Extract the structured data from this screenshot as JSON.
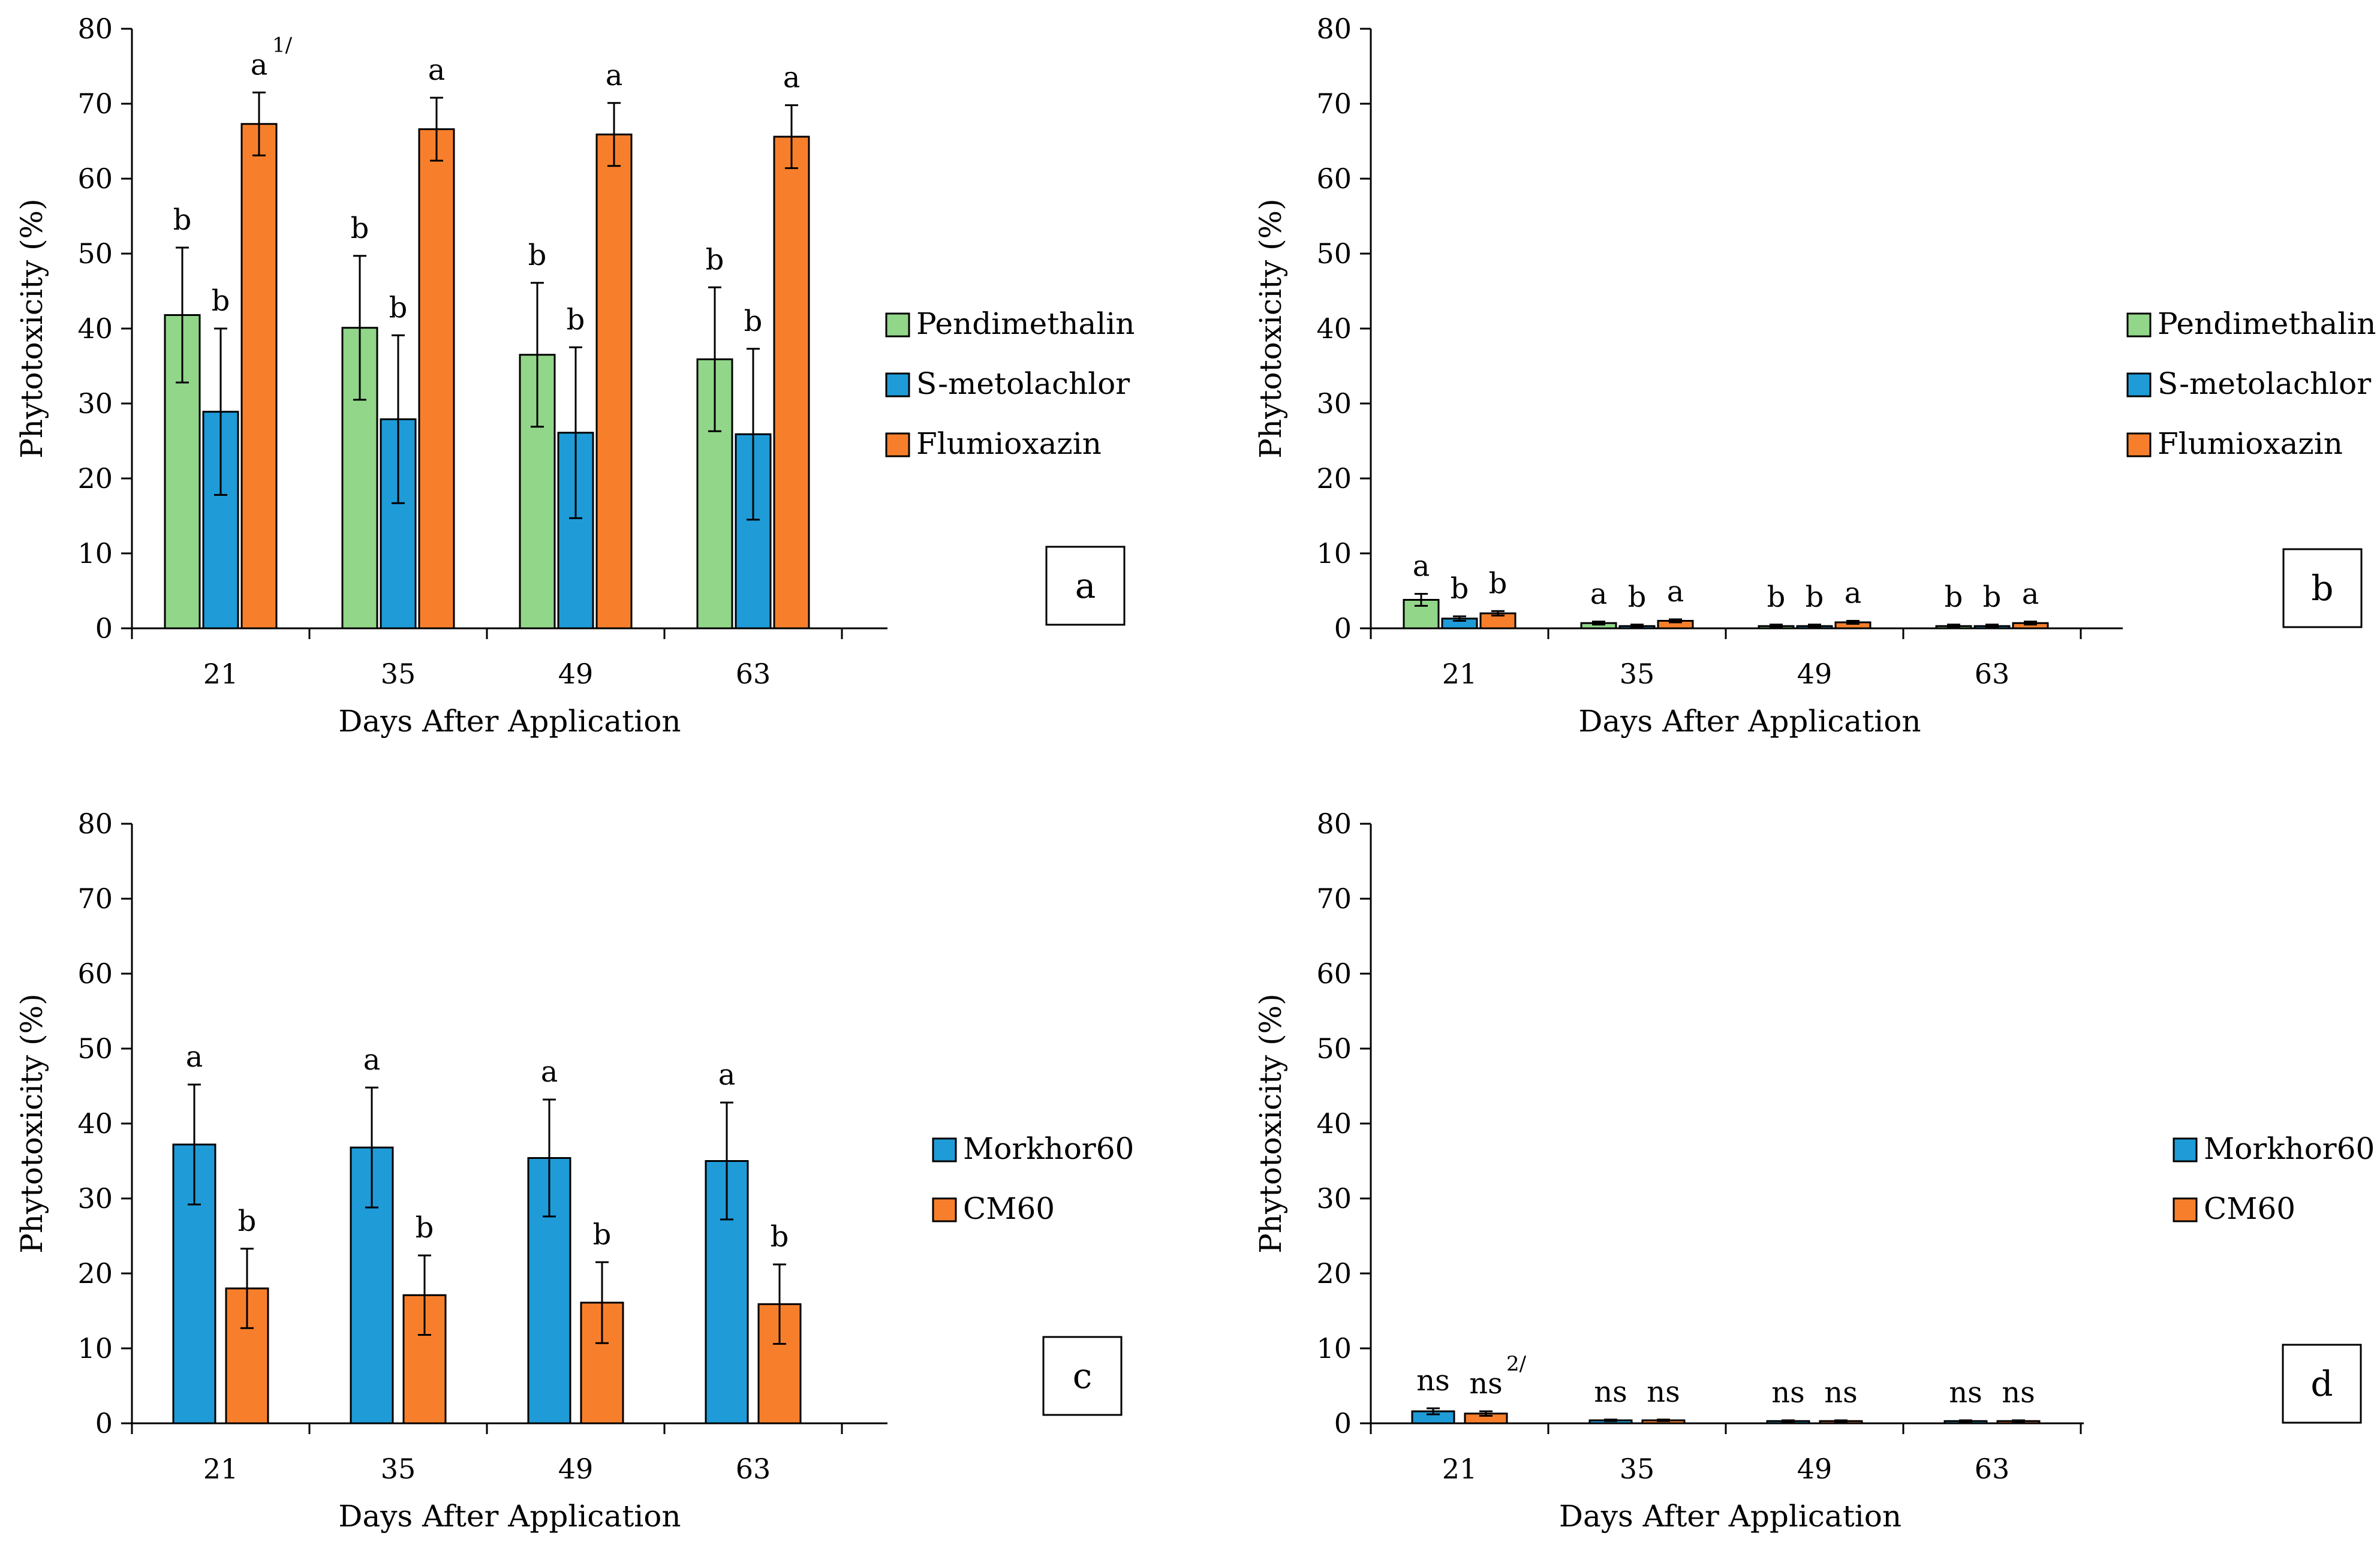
{
  "colors": {
    "pendimethalin": "#92d68a",
    "s_metolachlor": "#1f9bd8",
    "flumioxazin": "#f77f2c",
    "morkhor60": "#1f9bd8",
    "cm60": "#f77f2c",
    "axis": "#000000"
  },
  "chart_data": [
    {
      "type": "bar",
      "panel_label": "a",
      "xlabel": "Days After Application",
      "ylabel": "Phytotoxicity (%)",
      "ylim": [
        0,
        80
      ],
      "yticks": [
        "0",
        "10",
        "20",
        "30",
        "40",
        "50",
        "60",
        "70",
        "80"
      ],
      "categories": [
        "21",
        "35",
        "49",
        "63"
      ],
      "legend_position": "right",
      "series": [
        {
          "name": "Pendimethalin",
          "color_key": "pendimethalin",
          "values": [
            41.8,
            40.1,
            36.5,
            35.9
          ],
          "errors": [
            9.0,
            9.6,
            9.6,
            9.6
          ],
          "labels": [
            "b",
            "b",
            "b",
            "b"
          ]
        },
        {
          "name": "S-metolachlor",
          "color_key": "s_metolachlor",
          "values": [
            28.9,
            27.9,
            26.1,
            25.9
          ],
          "errors": [
            11.1,
            11.2,
            11.4,
            11.4
          ],
          "labels": [
            "b",
            "b",
            "b",
            "b"
          ]
        },
        {
          "name": "Flumioxazin",
          "color_key": "flumioxazin",
          "values": [
            67.3,
            66.6,
            65.9,
            65.6
          ],
          "errors": [
            4.2,
            4.2,
            4.2,
            4.2
          ],
          "labels": [
            "a",
            "a",
            "a",
            "a"
          ]
        }
      ],
      "footnote_marker": "1/"
    },
    {
      "type": "bar",
      "panel_label": "b",
      "xlabel": "Days After Application",
      "ylabel": "Phytotoxicity (%)",
      "ylim": [
        0,
        80
      ],
      "yticks": [
        "0",
        "10",
        "20",
        "30",
        "40",
        "50",
        "60",
        "70",
        "80"
      ],
      "categories": [
        "21",
        "35",
        "49",
        "63"
      ],
      "legend_position": "right",
      "series": [
        {
          "name": "Pendimethalin",
          "color_key": "pendimethalin",
          "values": [
            3.8,
            0.7,
            0.3,
            0.3
          ],
          "errors": [
            0.8,
            0.2,
            0.2,
            0.2
          ],
          "labels": [
            "a",
            "a",
            "b",
            "b"
          ]
        },
        {
          "name": "S-metolachlor",
          "color_key": "s_metolachlor",
          "values": [
            1.3,
            0.3,
            0.3,
            0.3
          ],
          "errors": [
            0.3,
            0.2,
            0.2,
            0.2
          ],
          "labels": [
            "b",
            "b",
            "b",
            "b"
          ]
        },
        {
          "name": "Flumioxazin",
          "color_key": "flumioxazin",
          "values": [
            2.0,
            1.0,
            0.8,
            0.7
          ],
          "errors": [
            0.3,
            0.2,
            0.2,
            0.2
          ],
          "labels": [
            "b",
            "a",
            "a",
            "a"
          ]
        }
      ]
    },
    {
      "type": "bar",
      "panel_label": "c",
      "xlabel": "Days After Application",
      "ylabel": "Phytotoxicity (%)",
      "ylim": [
        0,
        80
      ],
      "yticks": [
        "0",
        "10",
        "20",
        "30",
        "40",
        "50",
        "60",
        "70",
        "80"
      ],
      "categories": [
        "21",
        "35",
        "49",
        "63"
      ],
      "legend_position": "right",
      "series": [
        {
          "name": "Morkhor60",
          "color_key": "morkhor60",
          "values": [
            37.2,
            36.8,
            35.4,
            35.0
          ],
          "errors": [
            8.0,
            8.0,
            7.8,
            7.8
          ],
          "labels": [
            "a",
            "a",
            "a",
            "a"
          ]
        },
        {
          "name": "CM60",
          "color_key": "cm60",
          "values": [
            18.0,
            17.1,
            16.1,
            15.9
          ],
          "errors": [
            5.3,
            5.3,
            5.4,
            5.3
          ],
          "labels": [
            "b",
            "b",
            "b",
            "b"
          ]
        }
      ]
    },
    {
      "type": "bar",
      "panel_label": "d",
      "xlabel": "Days After Application",
      "ylabel": "Phytotoxicity (%)",
      "ylim": [
        0,
        80
      ],
      "yticks": [
        "0",
        "10",
        "20",
        "30",
        "40",
        "50",
        "60",
        "70",
        "80"
      ],
      "categories": [
        "21",
        "35",
        "49",
        "63"
      ],
      "legend_position": "right",
      "series": [
        {
          "name": "Morkhor60",
          "color_key": "morkhor60",
          "values": [
            1.6,
            0.4,
            0.3,
            0.3
          ],
          "errors": [
            0.4,
            0.1,
            0.1,
            0.1
          ],
          "labels": [
            "ns",
            "ns",
            "ns",
            "ns"
          ]
        },
        {
          "name": "CM60",
          "color_key": "cm60",
          "values": [
            1.3,
            0.4,
            0.3,
            0.3
          ],
          "errors": [
            0.3,
            0.1,
            0.1,
            0.1
          ],
          "labels": [
            "ns",
            "ns",
            "ns",
            "ns"
          ]
        }
      ],
      "footnote_marker": "2/"
    }
  ]
}
